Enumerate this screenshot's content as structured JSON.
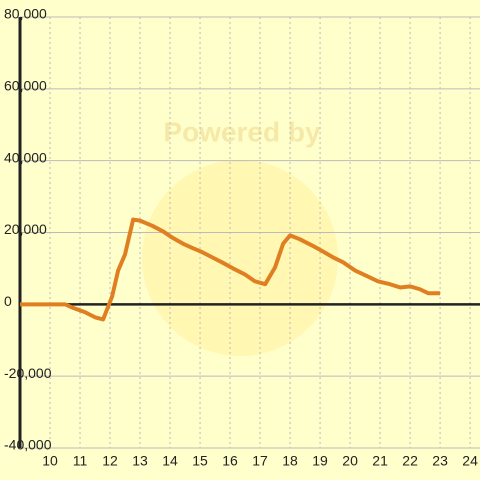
{
  "chart_data": {
    "type": "line",
    "watermark": "Powered by",
    "xlim": [
      9,
      24.33
    ],
    "xticks": [
      10,
      11,
      12,
      13,
      14,
      15,
      16,
      17,
      18,
      19,
      20,
      21,
      22,
      23,
      24
    ],
    "ylim": [
      -40000,
      80000
    ],
    "yticks": [
      {
        "value": -40000,
        "label": "-40,000"
      },
      {
        "value": -20000,
        "label": "-20,000"
      },
      0,
      {
        "value": 20000,
        "label": "20,000"
      },
      {
        "value": 40000,
        "label": "40,000"
      },
      {
        "value": 60000,
        "label": "60,000"
      },
      {
        "value": 80000,
        "label": "80,000"
      }
    ],
    "grid": true,
    "series": [
      {
        "color": "#e07f22",
        "x": [
          9,
          10.5,
          10.77,
          11.17,
          11.5,
          11.77,
          12.07,
          12.27,
          12.5,
          12.77,
          13,
          13.4,
          13.77,
          14.07,
          14.43,
          14.77,
          15.03,
          15.4,
          15.73,
          16.1,
          16.5,
          16.83,
          17.17,
          17.5,
          17.77,
          18,
          18.33,
          18.73,
          19.1,
          19.43,
          19.77,
          20.17,
          20.5,
          20.93,
          21.33,
          21.67,
          22,
          22.33,
          22.6,
          23
        ],
        "values": [
          0,
          0,
          -1000,
          -2200,
          -3600,
          -4200,
          2200,
          9400,
          13900,
          23600,
          23300,
          21900,
          20300,
          18600,
          16900,
          15600,
          14700,
          13100,
          11700,
          10000,
          8300,
          6400,
          5600,
          10300,
          16900,
          19200,
          18100,
          16400,
          14700,
          13100,
          11700,
          9400,
          8100,
          6400,
          5600,
          4700,
          5000,
          4200,
          3100,
          3100
        ]
      }
    ]
  }
}
